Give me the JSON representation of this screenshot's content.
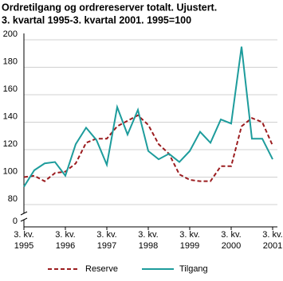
{
  "chart_data": {
    "type": "line",
    "title": "Ordretilgang og ordrereserver totalt. Ujustert.",
    "subtitle": "3. kvartal 1995-3. kvartal 2001. 1995=100",
    "categories": [
      "3. kv.\n1995",
      null,
      null,
      null,
      "3. kv.\n1996",
      null,
      null,
      null,
      "3. kv.\n1997",
      null,
      null,
      null,
      "3. kv.\n1998",
      null,
      null,
      null,
      "3. kv.\n1999",
      null,
      null,
      null,
      "3. kv.\n2000",
      null,
      null,
      null,
      "3. kv.\n2001"
    ],
    "series": [
      {
        "name": "Reserve",
        "color": "#9b1c1f",
        "dashed": true,
        "values": [
          100,
          101,
          97,
          103,
          104,
          110,
          125,
          128,
          128,
          137,
          141,
          145,
          138,
          124,
          117,
          102,
          98,
          97,
          97,
          108,
          108,
          137,
          143,
          140,
          123
        ]
      },
      {
        "name": "Tilgang",
        "color": "#1d9c9c",
        "dashed": false,
        "values": [
          93,
          105,
          110,
          111,
          101,
          124,
          136,
          127,
          109,
          151,
          131,
          149,
          119,
          113,
          117,
          111,
          119,
          133,
          125,
          142,
          139,
          195,
          128,
          128,
          113
        ]
      }
    ],
    "ylim": [
      80,
      200
    ],
    "yticks": [
      0,
      80,
      100,
      120,
      140,
      160,
      180,
      200
    ],
    "axis_break": true,
    "grid": true,
    "legend": "bottom"
  }
}
